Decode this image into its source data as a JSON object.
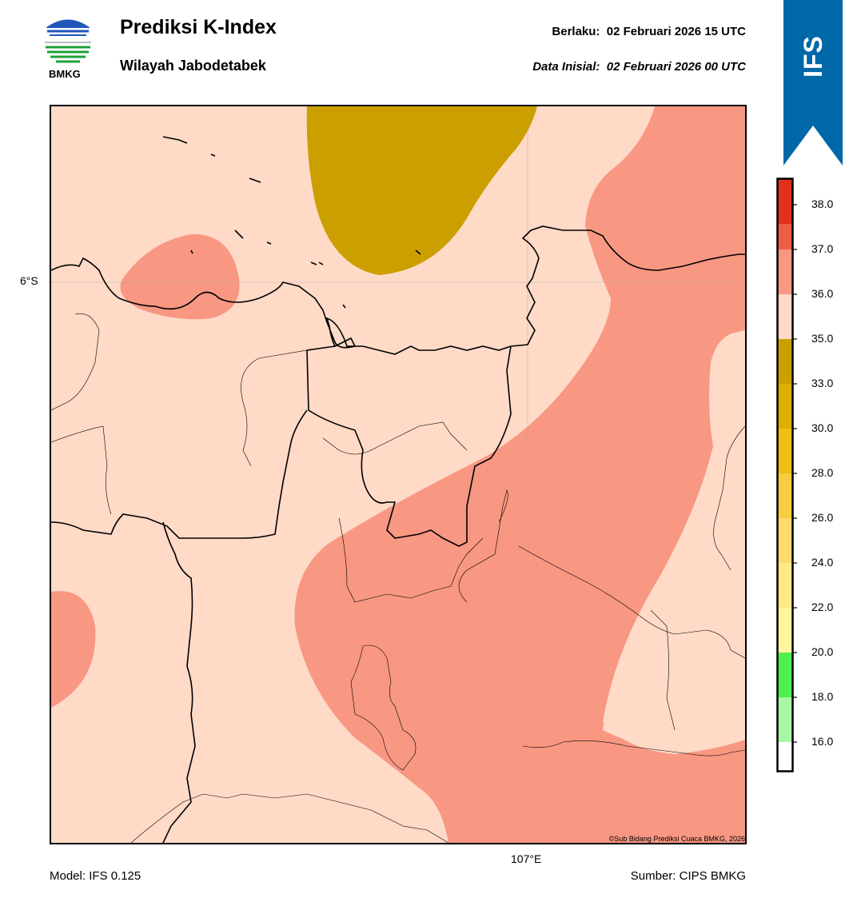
{
  "header": {
    "title": "Prediksi K-Index",
    "subtitle": "Wilayah Jabodetabek",
    "valid_time": "Berlaku:  02 Februari 2026 15 UTC",
    "initial_time": "Data Inisial:  02 Februari 2026 00 UTC",
    "logo_text": "BMKG"
  },
  "ribbon": {
    "label": "IFS",
    "color": "#0067a9"
  },
  "map": {
    "lat_label": "6°S",
    "lon_label": "107°E",
    "copyright": "©Sub Bidang Prediksi Cuaca BMKG, 2026",
    "field_colors": {
      "lt35": "#fedac7",
      "c33_35": "#cc9f00",
      "c35_36": "#fedac7",
      "c36_37": "#f89782"
    }
  },
  "colorbar": {
    "ticks": [
      "16.0",
      "18.0",
      "20.0",
      "22.0",
      "24.0",
      "26.0",
      "28.0",
      "30.0",
      "33.0",
      "35.0",
      "36.0",
      "37.0",
      "38.0"
    ],
    "colors": [
      "#ffffff",
      "#a6f8a5",
      "#4ef04e",
      "#fff59f",
      "#fee984",
      "#feda6e",
      "#f7cd42",
      "#eebd16",
      "#ddb000",
      "#cc9f00",
      "#fedac7",
      "#f89782",
      "#ee5e45",
      "#e3301d"
    ]
  },
  "footer": {
    "model": "Model: IFS 0.125",
    "source": "Sumber: CIPS BMKG"
  }
}
